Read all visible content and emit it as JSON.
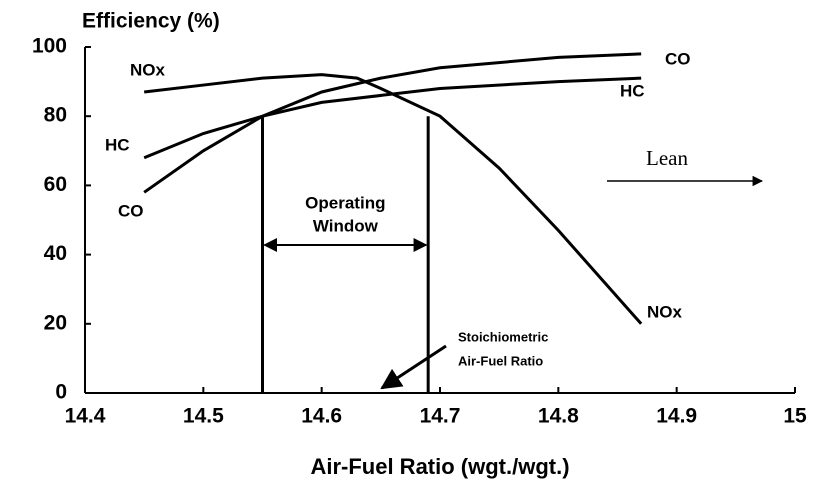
{
  "chart_data": {
    "type": "line",
    "title": "Efficiency (%)",
    "xlabel": "Air-Fuel Ratio (wgt./wgt.)",
    "xlim": [
      14.4,
      15
    ],
    "xticks": [
      14.4,
      14.5,
      14.6,
      14.7,
      14.8,
      14.9,
      15
    ],
    "ylim": [
      0,
      100
    ],
    "yticks": [
      0,
      20,
      40,
      60,
      80,
      100
    ],
    "color": "#000000",
    "series": [
      {
        "name": "NOx",
        "x": [
          14.45,
          14.5,
          14.55,
          14.6,
          14.63,
          14.65,
          14.7,
          14.75,
          14.8,
          14.87
        ],
        "values": [
          87,
          89,
          91,
          92,
          91,
          88,
          80,
          65,
          47,
          20
        ]
      },
      {
        "name": "CO",
        "x": [
          14.45,
          14.5,
          14.55,
          14.6,
          14.65,
          14.7,
          14.8,
          14.87
        ],
        "values": [
          58,
          70,
          80,
          87,
          91,
          94,
          97,
          98
        ]
      },
      {
        "name": "HC",
        "x": [
          14.45,
          14.5,
          14.55,
          14.6,
          14.7,
          14.8,
          14.87
        ],
        "values": [
          68,
          75,
          80,
          84,
          88,
          90,
          91
        ]
      }
    ],
    "operating_window": {
      "label": [
        "Operating",
        "Window"
      ],
      "x": [
        14.55,
        14.69
      ],
      "top": 80
    },
    "annotations": [
      [
        "Stoichiometric",
        "Air-Fuel Ratio"
      ],
      [
        "Lean"
      ]
    ]
  }
}
